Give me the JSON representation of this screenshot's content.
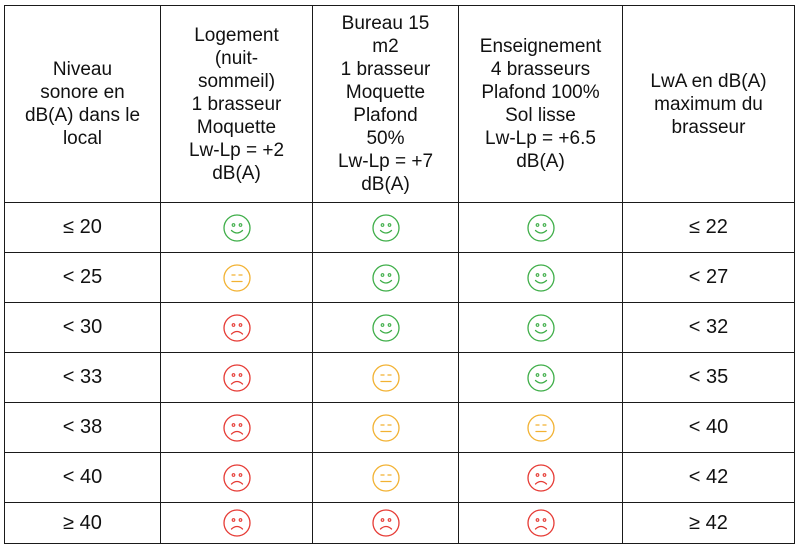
{
  "colors": {
    "good": "#3fae49",
    "neutral": "#f2b233",
    "bad": "#e63b35",
    "border": "#1a1a1a"
  },
  "headers": [
    [
      "Niveau",
      "sonore en",
      "dB(A) dans le",
      "local"
    ],
    [
      "Logement",
      "(nuit-",
      "sommeil)",
      "1 brasseur",
      "Moquette",
      "Lw-Lp = +2",
      "dB(A)"
    ],
    [
      "Bureau 15",
      "m2",
      "1 brasseur",
      "Moquette",
      "Plafond",
      "50%",
      "Lw-Lp = +7",
      "dB(A)"
    ],
    [
      "Enseignement",
      "4 brasseurs",
      "Plafond 100%",
      "Sol lisse",
      "Lw-Lp = +6.5",
      "dB(A)"
    ],
    [
      "LwA en dB(A)",
      "maximum du",
      "brasseur"
    ]
  ],
  "rows": [
    {
      "level": "≤ 20",
      "logement": "good",
      "bureau": "good",
      "enseignement": "good",
      "lwa": "≤ 22"
    },
    {
      "level": "< 25",
      "logement": "neutral",
      "bureau": "good",
      "enseignement": "good",
      "lwa": "< 27"
    },
    {
      "level": "< 30",
      "logement": "bad",
      "bureau": "good",
      "enseignement": "good",
      "lwa": "< 32"
    },
    {
      "level": "< 33",
      "logement": "bad",
      "bureau": "neutral",
      "enseignement": "good",
      "lwa": "< 35"
    },
    {
      "level": "< 38",
      "logement": "bad",
      "bureau": "neutral",
      "enseignement": "neutral",
      "lwa": "< 40"
    },
    {
      "level": "< 40",
      "logement": "bad",
      "bureau": "neutral",
      "enseignement": "bad",
      "lwa": "< 42"
    },
    {
      "level": "≥ 40",
      "logement": "bad",
      "bureau": "bad",
      "enseignement": "bad",
      "lwa": "≥ 42"
    }
  ]
}
